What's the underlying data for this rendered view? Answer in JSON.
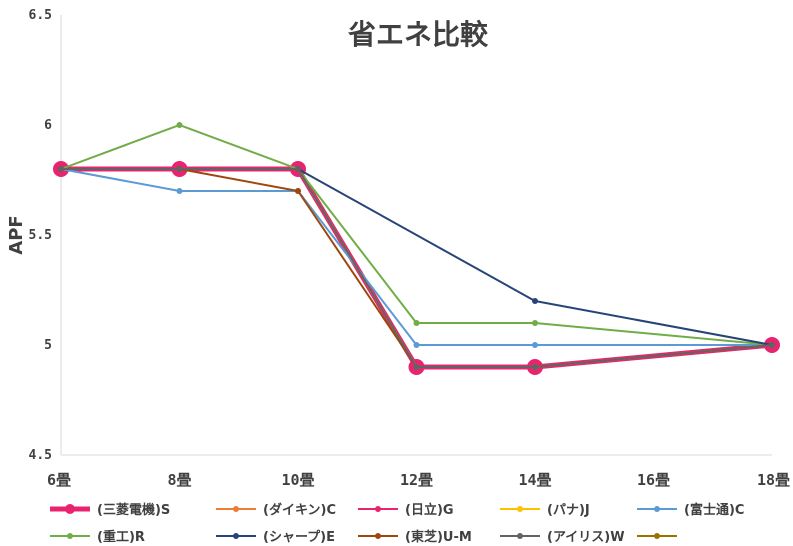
{
  "chart_data": {
    "type": "line",
    "title": "省エネ比較",
    "ylabel": "APF",
    "xlabel": "",
    "categories": [
      "6畳",
      "8畳",
      "10畳",
      "12畳",
      "14畳",
      "16畳",
      "18畳"
    ],
    "yticks": [
      "4.5",
      "5",
      "5.5",
      "6",
      "6.5"
    ],
    "ylim": [
      4.5,
      6.5
    ],
    "grid": false,
    "legend_position": "bottom",
    "series": [
      {
        "name": "(三菱電機)S",
        "color": "#E8236F",
        "emphasis": true,
        "values": [
          5.8,
          5.8,
          5.8,
          4.9,
          4.9,
          null,
          5.0
        ]
      },
      {
        "name": "(ダイキン)C",
        "color": "#ED7D31",
        "values": [
          5.8,
          5.8,
          5.8,
          4.9,
          4.9,
          null,
          5.0
        ]
      },
      {
        "name": "(日立)G",
        "color": "#E8236F",
        "values": [
          5.8,
          5.8,
          5.8,
          4.9,
          4.9,
          null,
          5.0
        ]
      },
      {
        "name": "(パナ)J",
        "color": "#FFC000",
        "values": [
          5.8,
          5.8,
          5.8,
          4.9,
          4.9,
          null,
          5.0
        ]
      },
      {
        "name": "(富士通)C",
        "color": "#5B9BD5",
        "values": [
          5.8,
          5.7,
          5.7,
          5.0,
          5.0,
          null,
          5.0
        ]
      },
      {
        "name": "(重工)R",
        "color": "#70AD47",
        "values": [
          5.8,
          6.0,
          5.8,
          5.1,
          5.1,
          null,
          5.0
        ]
      },
      {
        "name": "(シャープ)E",
        "color": "#264478",
        "values": [
          5.8,
          5.8,
          5.8,
          null,
          5.2,
          null,
          5.0
        ]
      },
      {
        "name": "(東芝)U-M",
        "color": "#9E480E",
        "values": [
          5.8,
          5.8,
          5.7,
          4.9,
          4.9,
          null,
          5.0
        ]
      },
      {
        "name": "(アイリス)W",
        "color": "#636363",
        "values": [
          5.8,
          5.8,
          5.8,
          4.9,
          4.9,
          null,
          5.0
        ]
      },
      {
        "name": "",
        "color": "#997300",
        "values": [
          null,
          null,
          null,
          null,
          null,
          null,
          null
        ]
      }
    ]
  }
}
